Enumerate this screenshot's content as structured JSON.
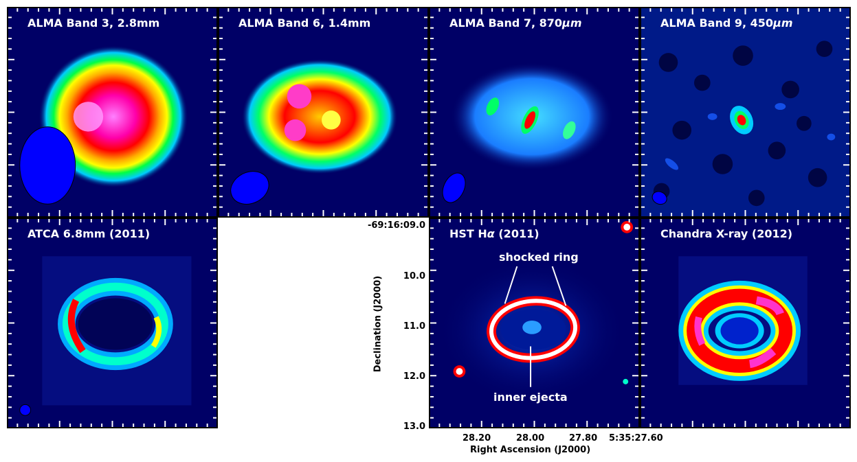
{
  "figure": {
    "panels": [
      {
        "id": "band3",
        "title": "ALMA Band 3, 2.8mm"
      },
      {
        "id": "band6",
        "title": "ALMA Band 6, 1.4mm"
      },
      {
        "id": "band7",
        "title_main": "ALMA Band 7, 870",
        "title_unit": "μm"
      },
      {
        "id": "band9",
        "title_main": "ALMA Band 9, 450",
        "title_unit": "μm"
      },
      {
        "id": "atca",
        "title": "ATCA 6.8mm (2011)"
      },
      {
        "id": "hst",
        "title_main": "HST H",
        "title_sub": "α",
        "title_tail": " (2011)"
      },
      {
        "id": "chandra",
        "title": "Chandra X-ray (2012)"
      }
    ],
    "annotations": {
      "shocked_ring": "shocked ring",
      "inner_ejecta": "inner ejecta"
    },
    "axes": {
      "ylabel": "Declination (J2000)",
      "xlabel": "Right Ascension (J2000)",
      "yticks": [
        "-69:16:09.0",
        "10.0",
        "11.0",
        "12.0",
        "13.0"
      ],
      "xticks": [
        "28.20",
        "28.00",
        "27.80",
        "5:35:27.60"
      ]
    },
    "colors": {
      "background": "#000066",
      "ring_hot": "#ff00ff",
      "ring_mid": "#ff0000",
      "ring_warm": "#ffff00",
      "ring_cool": "#00ff66",
      "ring_cold": "#00ccff",
      "beam": "#0000ff"
    }
  }
}
